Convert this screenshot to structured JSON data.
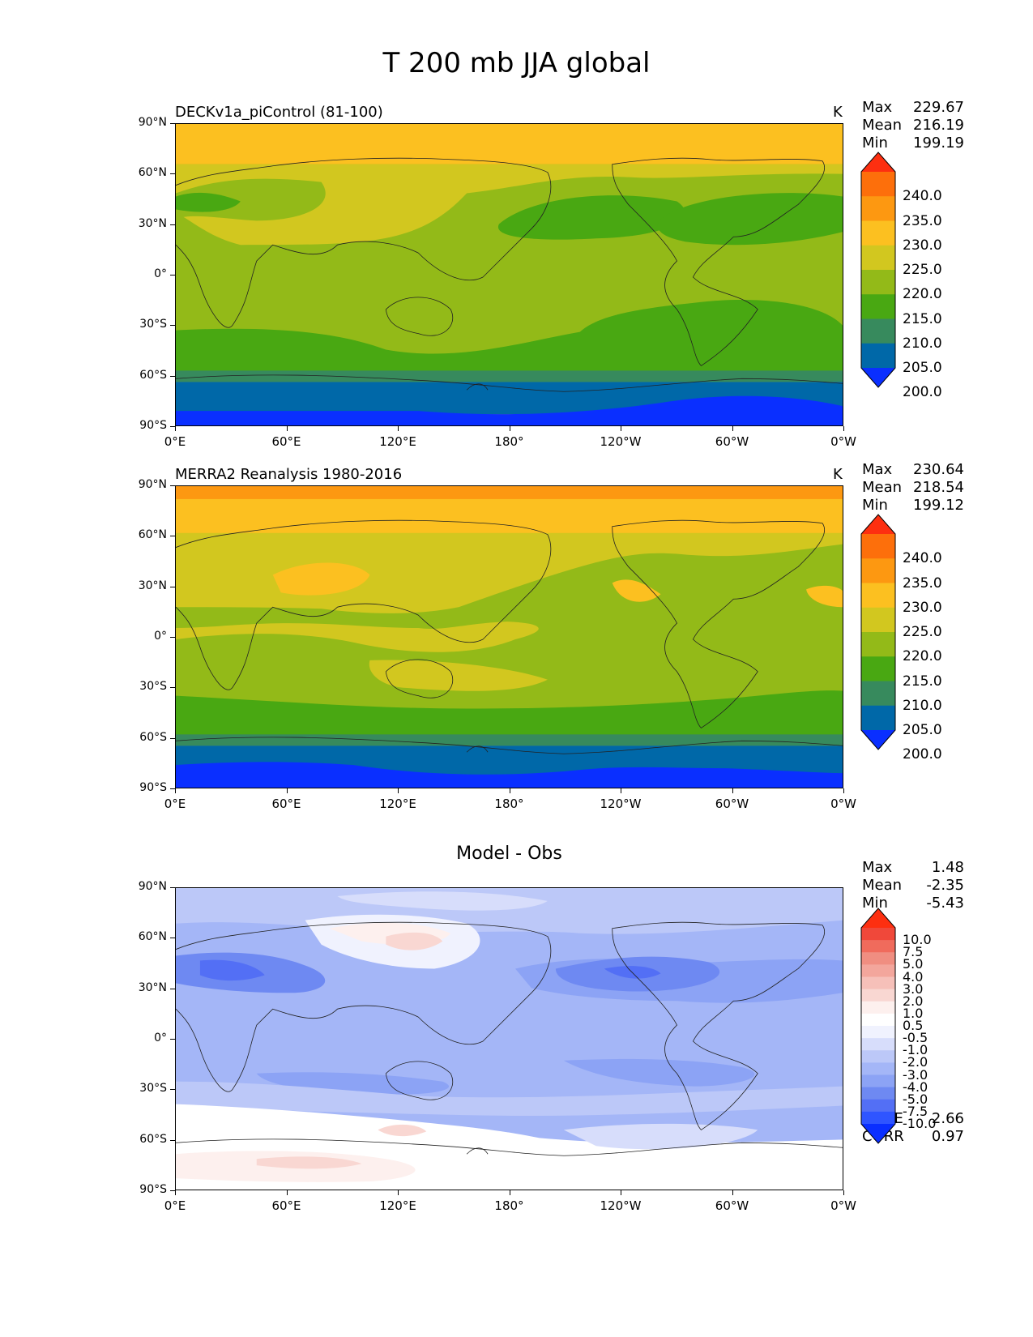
{
  "title": "T 200 mb JJA global",
  "colors": {
    "abs_levels": [
      "#0a2fff",
      "#0068a8",
      "#378a5d",
      "#49a812",
      "#93ba18",
      "#d2c71f",
      "#fcc020",
      "#fd9811",
      "#fd6f0b",
      "#fd2f10"
    ],
    "diff_levels": [
      "#0a2fff",
      "#2f55ff",
      "#536ff5",
      "#6e89f2",
      "#8ca3f5",
      "#a4b6f7",
      "#bcc8f8",
      "#d7ddfb",
      "#f0f2fe",
      "#ffffff",
      "#fdf0ee",
      "#f9d7d2",
      "#f6c0b9",
      "#f3a69c",
      "#f08e81",
      "#f06b5c",
      "#f0483a",
      "#fd2f10"
    ]
  },
  "axes": {
    "y_ticks": [
      "90°N",
      "60°N",
      "30°N",
      "0°",
      "30°S",
      "60°S",
      "90°S"
    ],
    "x_ticks": [
      "0°E",
      "60°E",
      "120°E",
      "180°",
      "120°W",
      "60°W",
      "0°W"
    ]
  },
  "panels": [
    {
      "subtitle": "DECKv1a_piControl (81-100)",
      "units": "K",
      "stats": [
        {
          "label": "Max",
          "value": "229.67"
        },
        {
          "label": "Mean",
          "value": "216.19"
        },
        {
          "label": "Min",
          "value": "199.19"
        }
      ],
      "colorbar_labels": [
        "240.0",
        "235.0",
        "230.0",
        "225.0",
        "220.0",
        "215.0",
        "210.0",
        "205.0",
        "200.0"
      ]
    },
    {
      "subtitle": "MERRA2 Reanalysis 1980-2016",
      "units": "K",
      "stats": [
        {
          "label": "Max",
          "value": "230.64"
        },
        {
          "label": "Mean",
          "value": "218.54"
        },
        {
          "label": "Min",
          "value": "199.12"
        }
      ],
      "colorbar_labels": [
        "240.0",
        "235.0",
        "230.0",
        "225.0",
        "220.0",
        "215.0",
        "210.0",
        "205.0",
        "200.0"
      ]
    },
    {
      "subtitle": "Model - Obs",
      "units": "",
      "stats": [
        {
          "label": "Max",
          "value": "1.48"
        },
        {
          "label": "Mean",
          "value": "-2.35"
        },
        {
          "label": "Min",
          "value": "-5.43"
        }
      ],
      "colorbar_labels": [
        "10.0",
        "7.5",
        "5.0",
        "4.0",
        "3.0",
        "2.0",
        "1.0",
        "0.5",
        "-0.5",
        "-1.0",
        "-2.0",
        "-3.0",
        "-4.0",
        "-5.0",
        "-7.5",
        "-10.0"
      ],
      "metrics": [
        {
          "label": "RMSE",
          "value": "2.66"
        },
        {
          "label": "CORR",
          "value": "0.97"
        }
      ]
    }
  ]
}
